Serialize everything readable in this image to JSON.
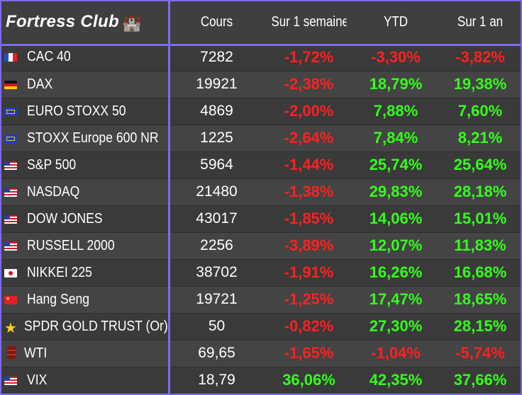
{
  "header": {
    "title": "Fortress Club",
    "title_icon": "castle-icon",
    "columns": [
      "Cours",
      "Sur 1 semaine",
      "YTD",
      "Sur 1 an"
    ]
  },
  "colors": {
    "accent_border": "#7b6cf0",
    "negative": "#ff2020",
    "positive": "#33ff1a",
    "background": "#404040"
  },
  "rows": [
    {
      "flag": "fr-flag-icon",
      "name": "CAC 40",
      "cours": "7282",
      "week": "-1,72%",
      "ytd": "-3,30%",
      "year": "-3,82%"
    },
    {
      "flag": "de-flag-icon",
      "name": "DAX",
      "cours": "19921",
      "week": "-2,38%",
      "ytd": "18,79%",
      "year": "19,38%"
    },
    {
      "flag": "eu-flag-icon",
      "name": "EURO STOXX 50",
      "cours": "4869",
      "week": "-2,00%",
      "ytd": "7,88%",
      "year": "7,60%"
    },
    {
      "flag": "eu-flag-icon",
      "name": "STOXX Europe 600 NR",
      "cours": "1225",
      "week": "-2,64%",
      "ytd": "7,84%",
      "year": "8,21%"
    },
    {
      "flag": "us-flag-icon",
      "name": "S&P 500",
      "cours": "5964",
      "week": "-1,44%",
      "ytd": "25,74%",
      "year": "25,64%"
    },
    {
      "flag": "us-flag-icon",
      "name": "NASDAQ",
      "cours": "21480",
      "week": "-1,38%",
      "ytd": "29,83%",
      "year": "28,18%"
    },
    {
      "flag": "us-flag-icon",
      "name": "DOW JONES",
      "cours": "43017",
      "week": "-1,85%",
      "ytd": "14,06%",
      "year": "15,01%"
    },
    {
      "flag": "us-flag-icon",
      "name": "RUSSELL 2000",
      "cours": "2256",
      "week": "-3,89%",
      "ytd": "12,07%",
      "year": "11,83%"
    },
    {
      "flag": "jp-flag-icon",
      "name": "NIKKEI 225",
      "cours": "38702",
      "week": "-1,91%",
      "ytd": "16,26%",
      "year": "16,68%"
    },
    {
      "flag": "cn-flag-icon",
      "name": "Hang Seng",
      "cours": "19721",
      "week": "-1,25%",
      "ytd": "17,47%",
      "year": "18,65%"
    },
    {
      "flag": "star-icon",
      "name": "SPDR GOLD TRUST (Or)",
      "cours": "50",
      "week": "-0,82%",
      "ytd": "27,30%",
      "year": "28,15%"
    },
    {
      "flag": "oil-barrel-icon",
      "name": "WTI",
      "cours": "69,65",
      "week": "-1,65%",
      "ytd": "-1,04%",
      "year": "-5,74%"
    },
    {
      "flag": "us-flag-icon",
      "name": "VIX",
      "cours": "18,79",
      "week": "36,06%",
      "ytd": "42,35%",
      "year": "37,66%"
    }
  ]
}
